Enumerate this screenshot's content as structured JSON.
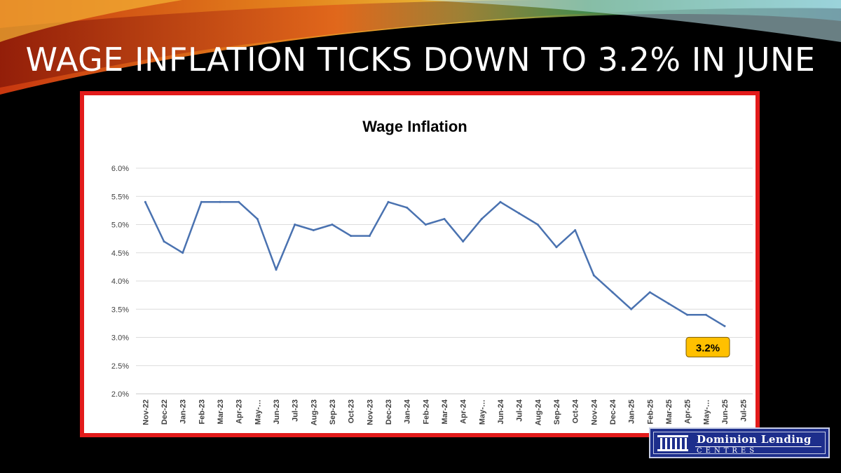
{
  "slide": {
    "title": "WAGE INFLATION TICKS DOWN TO 3.2% IN JUNE"
  },
  "logo": {
    "name": "Dominion Lending",
    "subtitle": "CENTRES"
  },
  "colors": {
    "frame": "#e31b1b",
    "line": "#4a72b0",
    "callout_fill": "#ffc000",
    "logo_bg": "#1d2e8c"
  },
  "chart_data": {
    "type": "line",
    "title": "Wage Inflation",
    "xlabel": "",
    "ylabel": "",
    "ylim": [
      0.02,
      0.06
    ],
    "yticks": [
      "2.0%",
      "2.5%",
      "3.0%",
      "3.5%",
      "4.0%",
      "4.5%",
      "5.0%",
      "5.5%",
      "6.0%"
    ],
    "grid": "horizontal",
    "categories": [
      "Nov-22",
      "Dec-22",
      "Jan-23",
      "Feb-23",
      "Mar-23",
      "Apr-23",
      "May-…",
      "Jun-23",
      "Jul-23",
      "Aug-23",
      "Sep-23",
      "Oct-23",
      "Nov-23",
      "Dec-23",
      "Jan-24",
      "Feb-24",
      "Mar-24",
      "Apr-24",
      "May-…",
      "Jun-24",
      "Jul-24",
      "Aug-24",
      "Sep-24",
      "Oct-24",
      "Nov-24",
      "Dec-24",
      "Jan-25",
      "Feb-25",
      "Mar-25",
      "Apr-25",
      "May-…",
      "Jun-25",
      "Jul-25"
    ],
    "series": [
      {
        "values": [
          0.054,
          0.047,
          0.045,
          0.054,
          0.054,
          0.054,
          0.051,
          0.042,
          0.05,
          0.049,
          0.05,
          0.048,
          0.048,
          0.054,
          0.053,
          0.05,
          0.051,
          0.047,
          0.051,
          0.054,
          0.052,
          0.05,
          0.046,
          0.049,
          0.041,
          0.038,
          0.035,
          0.038,
          0.036,
          0.034,
          0.034,
          0.032,
          null
        ]
      }
    ],
    "annotation": {
      "text": "3.2%",
      "category": "Jun-25"
    }
  }
}
